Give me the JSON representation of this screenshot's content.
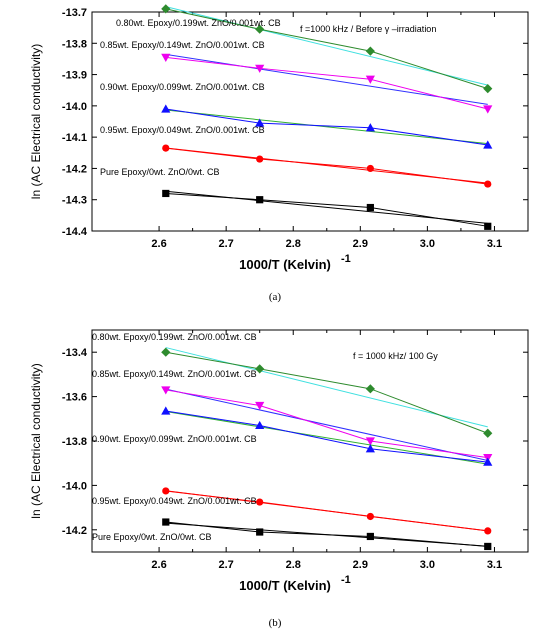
{
  "chart_data": [
    {
      "type": "line",
      "caption": "(a)",
      "xlabel": "1000/T (Kelvin)",
      "xlabel_sup": "-1",
      "ylabel": "ln (AC Electrical conductivity)",
      "xlim": [
        2.5,
        3.15
      ],
      "ylim": [
        -14.4,
        -13.7
      ],
      "xticks": [
        "2.6",
        "2.7",
        "2.8",
        "2.9",
        "3.0",
        "3.1"
      ],
      "yticks": [
        "-13.7",
        "-13.8",
        "-13.9",
        "-14.0",
        "-14.1",
        "-14.2",
        "-14.3",
        "-14.4"
      ],
      "condition_label": "f =1000 kHz / Before γ –irradiation",
      "x": [
        2.61,
        2.75,
        2.915,
        3.09
      ],
      "series": [
        {
          "label": "0.80wt. Epoxy/0.199wt. ZnO/0.001wt. CB",
          "values": [
            -13.69,
            -13.755,
            -13.825,
            -13.945
          ],
          "color": "#2e8b2e",
          "fit_color": "#40e0e0",
          "marker": "diamond"
        },
        {
          "label": "0.85wt. Epoxy/0.149wt. ZnO/0.001wt. CB",
          "values": [
            -13.845,
            -13.88,
            -13.915,
            -14.01
          ],
          "color": "#ee00ee",
          "fit_color": "#3030ff",
          "marker": "triangle-down"
        },
        {
          "label": "0.90wt. Epoxy/0.099wt. ZnO/0.001wt. CB",
          "values": [
            -14.01,
            -14.055,
            -14.07,
            -14.125
          ],
          "color": "#1010ff",
          "fit_color": "#30b030",
          "marker": "triangle-up"
        },
        {
          "label": "0.95wt. Epoxy/0.049wt. ZnO/0.001wt. CB",
          "values": [
            -14.135,
            -14.17,
            -14.2,
            -14.25
          ],
          "color": "#ff0000",
          "fit_color": "#ff0000",
          "marker": "circle"
        },
        {
          "label": "Pure Epoxy/0wt. ZnO/0wt. CB",
          "values": [
            -14.28,
            -14.3,
            -14.325,
            -14.385
          ],
          "color": "#000000",
          "fit_color": "#000000",
          "marker": "square"
        }
      ]
    },
    {
      "type": "line",
      "caption": "(b)",
      "xlabel": "1000/T (Kelvin)",
      "xlabel_sup": "-1",
      "ylabel": "ln (AC Electrical conductivity)",
      "xlim": [
        2.5,
        3.15
      ],
      "ylim": [
        -14.3,
        -13.3
      ],
      "xticks": [
        "2.6",
        "2.7",
        "2.8",
        "2.9",
        "3.0",
        "3.1"
      ],
      "yticks": [
        "-13.4",
        "-13.6",
        "-13.8",
        "-14.0",
        "-14.2"
      ],
      "condition_label": "f = 1000 kHz/ 100 Gy",
      "x": [
        2.61,
        2.75,
        2.915,
        3.09
      ],
      "series": [
        {
          "label": "0.80wt. Epoxy/0.199wt. ZnO/0.001wt. CB",
          "values": [
            -13.4,
            -13.475,
            -13.565,
            -13.765
          ],
          "color": "#2e8b2e",
          "fit_color": "#40e0e0",
          "marker": "diamond"
        },
        {
          "label": "0.85wt. Epoxy/0.149wt. ZnO/0.001wt. CB",
          "values": [
            -13.57,
            -13.64,
            -13.8,
            -13.875
          ],
          "color": "#ee00ee",
          "fit_color": "#3030ff",
          "marker": "triangle-down"
        },
        {
          "label": "0.90wt. Epoxy/0.099wt. ZnO/0.001wt. CB",
          "values": [
            -13.665,
            -13.73,
            -13.835,
            -13.895
          ],
          "color": "#1010ff",
          "fit_color": "#30b030",
          "marker": "triangle-up"
        },
        {
          "label": "0.95wt. Epoxy/0.049wt. ZnO/0.001wt. CB",
          "values": [
            -14.025,
            -14.075,
            -14.14,
            -14.205
          ],
          "color": "#ff0000",
          "fit_color": "#ff0000",
          "marker": "circle"
        },
        {
          "label": "Pure Epoxy/0wt. ZnO/0wt. CB",
          "values": [
            -14.165,
            -14.21,
            -14.23,
            -14.275
          ],
          "color": "#000000",
          "fit_color": "#000000",
          "marker": "square"
        }
      ]
    }
  ]
}
